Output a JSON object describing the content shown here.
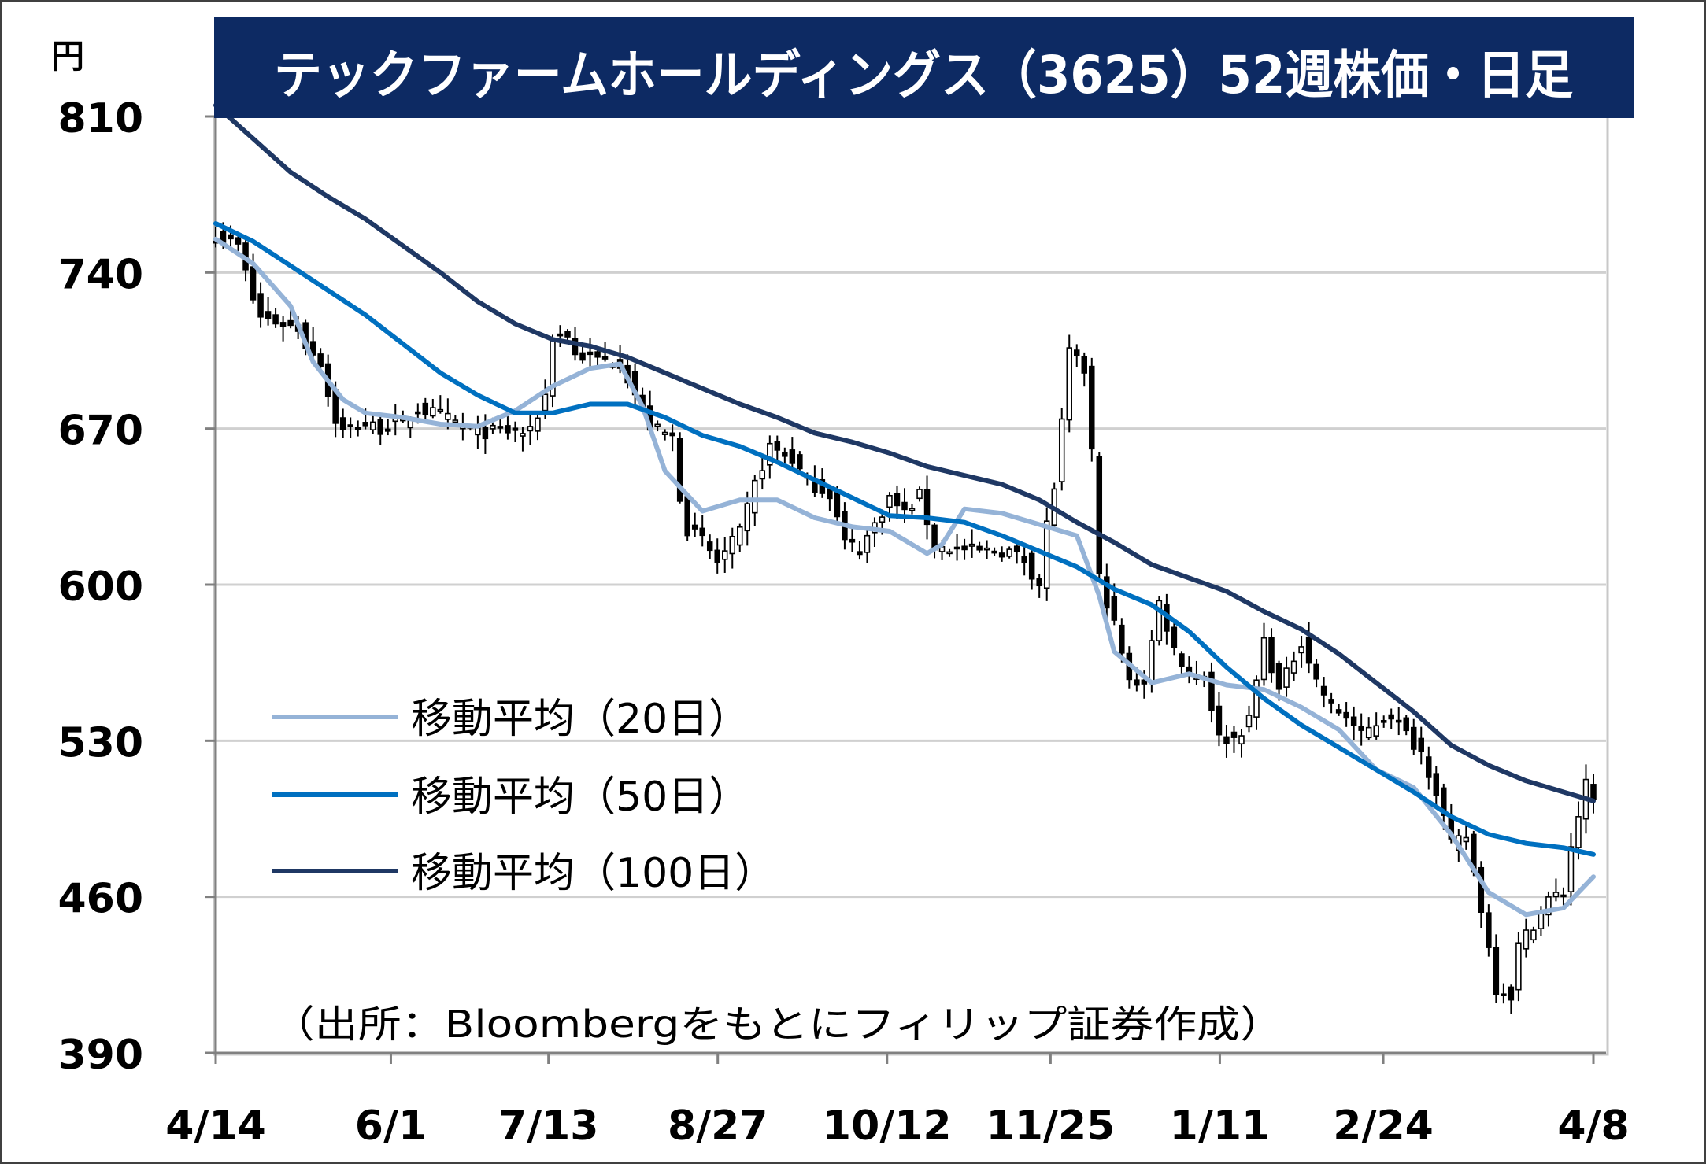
{
  "chart_data": {
    "type": "candlestick",
    "title": "テックファームホールディングス（3625）52週株価・日足",
    "y_unit": "円",
    "ylim": [
      390,
      810
    ],
    "y_ticks": [
      "810",
      "740",
      "670",
      "600",
      "530",
      "460",
      "390"
    ],
    "x_ticks": [
      "4/14",
      "6/1",
      "7/13",
      "8/27",
      "10/12",
      "11/25",
      "1/11",
      "2/24",
      "4/8"
    ],
    "grid": true,
    "legend_position": "lower-left",
    "source_note": "（出所：Bloombergをもとにフィリップ証券作成）",
    "colors": {
      "ma20": "#95b3d7",
      "ma50": "#0070c0",
      "ma100": "#1f3864",
      "title_bg": "#0d2a63",
      "candle_up": "#ffffff",
      "candle_down": "#000000"
    },
    "series": [
      {
        "name": "移動平均（20日）",
        "key": "ma20",
        "points": [
          [
            0,
            755
          ],
          [
            5,
            744
          ],
          [
            10,
            725
          ],
          [
            13,
            700
          ],
          [
            17,
            683
          ],
          [
            20,
            677
          ],
          [
            25,
            675
          ],
          [
            30,
            672
          ],
          [
            35,
            671
          ],
          [
            40,
            678
          ],
          [
            45,
            689
          ],
          [
            50,
            697
          ],
          [
            54,
            699
          ],
          [
            57,
            680
          ],
          [
            60,
            651
          ],
          [
            65,
            633
          ],
          [
            70,
            638
          ],
          [
            75,
            638
          ],
          [
            80,
            630
          ],
          [
            85,
            626
          ],
          [
            90,
            624
          ],
          [
            95,
            614
          ],
          [
            97,
            618
          ],
          [
            100,
            634
          ],
          [
            105,
            632
          ],
          [
            110,
            627
          ],
          [
            115,
            622
          ],
          [
            118,
            595
          ],
          [
            120,
            570
          ],
          [
            125,
            556
          ],
          [
            130,
            560
          ],
          [
            135,
            555
          ],
          [
            140,
            553
          ],
          [
            145,
            545
          ],
          [
            150,
            535
          ],
          [
            155,
            517
          ],
          [
            160,
            509
          ],
          [
            165,
            488
          ],
          [
            170,
            462
          ],
          [
            175,
            452
          ],
          [
            180,
            455
          ],
          [
            184,
            469
          ]
        ]
      },
      {
        "name": "移動平均（50日）",
        "key": "ma50",
        "points": [
          [
            0,
            762
          ],
          [
            5,
            754
          ],
          [
            10,
            743
          ],
          [
            15,
            732
          ],
          [
            20,
            721
          ],
          [
            25,
            708
          ],
          [
            30,
            695
          ],
          [
            35,
            685
          ],
          [
            40,
            677
          ],
          [
            45,
            677
          ],
          [
            50,
            681
          ],
          [
            55,
            681
          ],
          [
            60,
            675
          ],
          [
            65,
            667
          ],
          [
            70,
            662
          ],
          [
            75,
            655
          ],
          [
            80,
            647
          ],
          [
            85,
            639
          ],
          [
            90,
            631
          ],
          [
            95,
            630
          ],
          [
            100,
            628
          ],
          [
            105,
            622
          ],
          [
            110,
            615
          ],
          [
            115,
            608
          ],
          [
            120,
            598
          ],
          [
            125,
            591
          ],
          [
            130,
            579
          ],
          [
            135,
            563
          ],
          [
            140,
            549
          ],
          [
            145,
            537
          ],
          [
            150,
            527
          ],
          [
            155,
            517
          ],
          [
            160,
            507
          ],
          [
            165,
            496
          ],
          [
            170,
            488
          ],
          [
            175,
            484
          ],
          [
            180,
            482
          ],
          [
            184,
            479
          ]
        ]
      },
      {
        "name": "移動平均（100日）",
        "key": "ma100",
        "points": [
          [
            0,
            815
          ],
          [
            5,
            800
          ],
          [
            10,
            785
          ],
          [
            15,
            774
          ],
          [
            20,
            764
          ],
          [
            25,
            752
          ],
          [
            30,
            740
          ],
          [
            35,
            727
          ],
          [
            40,
            717
          ],
          [
            45,
            710
          ],
          [
            50,
            707
          ],
          [
            55,
            702
          ],
          [
            60,
            695
          ],
          [
            65,
            688
          ],
          [
            70,
            681
          ],
          [
            75,
            675
          ],
          [
            80,
            668
          ],
          [
            85,
            664
          ],
          [
            90,
            659
          ],
          [
            95,
            653
          ],
          [
            100,
            649
          ],
          [
            105,
            645
          ],
          [
            110,
            638
          ],
          [
            115,
            628
          ],
          [
            120,
            619
          ],
          [
            125,
            609
          ],
          [
            130,
            603
          ],
          [
            135,
            597
          ],
          [
            140,
            588
          ],
          [
            145,
            580
          ],
          [
            150,
            569
          ],
          [
            155,
            556
          ],
          [
            160,
            543
          ],
          [
            165,
            528
          ],
          [
            170,
            519
          ],
          [
            175,
            512
          ],
          [
            180,
            507
          ],
          [
            184,
            503
          ]
        ]
      }
    ],
    "daily_close_path": [
      [
        0,
        757
      ],
      [
        3,
        752
      ],
      [
        4,
        740
      ],
      [
        5,
        728
      ],
      [
        6,
        720
      ],
      [
        8,
        718
      ],
      [
        11,
        715
      ],
      [
        12,
        708
      ],
      [
        14,
        700
      ],
      [
        15,
        685
      ],
      [
        16,
        674
      ],
      [
        17,
        669
      ],
      [
        20,
        672
      ],
      [
        22,
        670
      ],
      [
        25,
        673
      ],
      [
        27,
        679
      ],
      [
        30,
        676
      ],
      [
        33,
        671
      ],
      [
        35,
        668
      ],
      [
        38,
        669
      ],
      [
        42,
        668
      ],
      [
        44,
        685
      ],
      [
        45,
        712
      ],
      [
        47,
        712
      ],
      [
        48,
        703
      ],
      [
        51,
        701
      ],
      [
        54,
        700
      ],
      [
        58,
        671
      ],
      [
        61,
        666
      ],
      [
        62,
        640
      ],
      [
        63,
        625
      ],
      [
        65,
        620
      ],
      [
        67,
        610
      ],
      [
        70,
        623
      ],
      [
        72,
        645
      ],
      [
        74,
        662
      ],
      [
        77,
        656
      ],
      [
        79,
        646
      ],
      [
        82,
        641
      ],
      [
        84,
        619
      ],
      [
        86,
        616
      ],
      [
        88,
        627
      ],
      [
        90,
        639
      ],
      [
        92,
        632
      ],
      [
        94,
        640
      ],
      [
        96,
        617
      ],
      [
        99,
        616
      ],
      [
        102,
        615
      ],
      [
        106,
        615
      ],
      [
        108,
        611
      ],
      [
        110,
        600
      ],
      [
        111,
        627
      ],
      [
        112,
        644
      ],
      [
        113,
        672
      ],
      [
        114,
        704
      ],
      [
        116,
        696
      ],
      [
        117,
        660
      ],
      [
        118,
        603
      ],
      [
        120,
        582
      ],
      [
        122,
        556
      ],
      [
        124,
        557
      ],
      [
        126,
        592
      ],
      [
        128,
        571
      ],
      [
        130,
        560
      ],
      [
        132,
        560
      ],
      [
        134,
        531
      ],
      [
        136,
        531
      ],
      [
        138,
        539
      ],
      [
        140,
        575
      ],
      [
        142,
        552
      ],
      [
        145,
        575
      ],
      [
        147,
        557
      ],
      [
        149,
        545
      ],
      [
        151,
        541
      ],
      [
        153,
        532
      ],
      [
        155,
        538
      ],
      [
        157,
        542
      ],
      [
        159,
        533
      ],
      [
        161,
        525
      ],
      [
        163,
        508
      ],
      [
        165,
        483
      ],
      [
        167,
        487
      ],
      [
        169,
        455
      ],
      [
        171,
        419
      ],
      [
        173,
        416
      ],
      [
        174,
        438
      ],
      [
        176,
        448
      ],
      [
        178,
        459
      ],
      [
        180,
        462
      ],
      [
        181,
        483
      ],
      [
        183,
        510
      ],
      [
        185,
        495
      ]
    ]
  }
}
